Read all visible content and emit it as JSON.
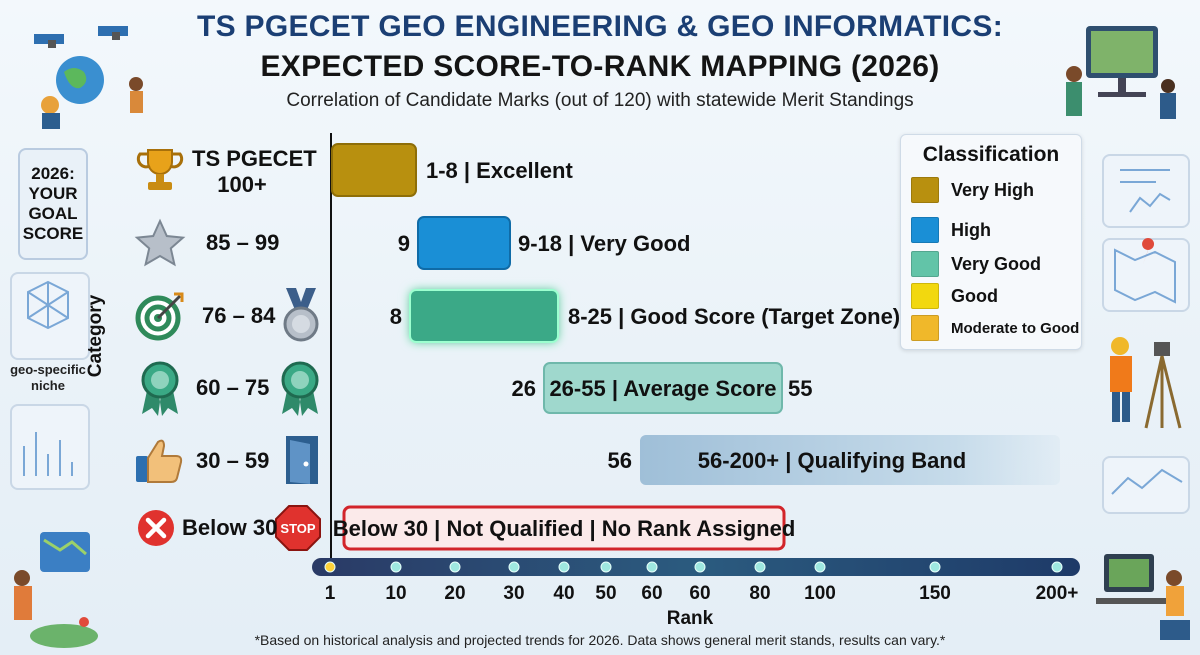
{
  "header": {
    "title_line1": "TS PGECET GEO ENGINEERING & GEO INFORMATICS:",
    "title_line2": "EXPECTED SCORE-TO-RANK MAPPING (2026)",
    "subtitle": "Correlation of Candidate Marks (out of 120) with statewide Merit Standings"
  },
  "side": {
    "goal_lines": [
      "2026:",
      "YOUR",
      "GOAL",
      "SCORE"
    ],
    "niche_label": "geo-specific niche"
  },
  "footnote": "*Based on historical analysis and projected trends for 2026. Data shows general merit stands, results can vary.*",
  "legend": {
    "title": "Classification",
    "items": [
      {
        "label": "Very High",
        "color": "#b8900f"
      },
      {
        "label": "High",
        "color": "#1a8fd6"
      },
      {
        "label": "Very Good",
        "color": "#62c4a8"
      },
      {
        "label": "Good",
        "color": "#f2d80f"
      },
      {
        "label": "Moderate to Good",
        "color": "#f0b82a"
      }
    ]
  },
  "categories": [
    {
      "label_line1": "TS PGECET",
      "label_line2": "100+",
      "icon": "trophy-icon"
    },
    {
      "label_line1": "85 – 99",
      "icon": "star-icon"
    },
    {
      "label_line1": "76 – 84",
      "icon": "target-icon",
      "icon2": "medal-icon"
    },
    {
      "label_line1": "60 – 75",
      "icon": "ribbon-icon",
      "icon2": "ribbon-icon"
    },
    {
      "label_line1": "30 – 59",
      "icon": "thumbs-up-icon",
      "icon2": "door-icon"
    },
    {
      "label_line1": "Below 30",
      "icon": "x-circle-icon",
      "icon2": "stop-sign-icon"
    }
  ],
  "chart_data": {
    "type": "bar",
    "orientation": "horizontal",
    "title": "EXPECTED SCORE-TO-RANK MAPPING (2026)",
    "xlabel": "Rank",
    "ylabel": "Category",
    "x_ticks": [
      "1",
      "10",
      "20",
      "30",
      "40",
      "50",
      "60",
      "60",
      "80",
      "100",
      "150",
      "200+"
    ],
    "x_scale": "non-linear",
    "bars": [
      {
        "category": "TS PGECET 100+",
        "rank_start": 1,
        "rank_end": 8,
        "label": "1-8 | Excellent",
        "start_label": "",
        "end_label": "",
        "color": "#b8900f"
      },
      {
        "category": "85 – 99",
        "rank_start": 9,
        "rank_end": 18,
        "label": "9-18 | Very Good",
        "start_label": "9",
        "end_label": "",
        "color": "#1a8fd6"
      },
      {
        "category": "76 – 84",
        "rank_start": 8,
        "rank_end": 25,
        "label": "8-25 | Good Score (Target Zone)",
        "start_label": "8",
        "end_label": "",
        "color": "#3aa987"
      },
      {
        "category": "60 – 75",
        "rank_start": 26,
        "rank_end": 55,
        "label": "26-55 | Average Score",
        "start_label": "26",
        "end_label": "55",
        "color": "#9fd8cd"
      },
      {
        "category": "30 – 59",
        "rank_start": 56,
        "rank_end": 200,
        "label": "56-200+ | Qualifying Band",
        "start_label": "56",
        "end_label": "",
        "color": "#a9c6dc"
      },
      {
        "category": "Below 30",
        "rank_start": null,
        "rank_end": null,
        "label": "Below 30 | Not Qualified | No Rank Assigned",
        "start_label": "",
        "end_label": "",
        "color": "#d2242a"
      }
    ]
  }
}
